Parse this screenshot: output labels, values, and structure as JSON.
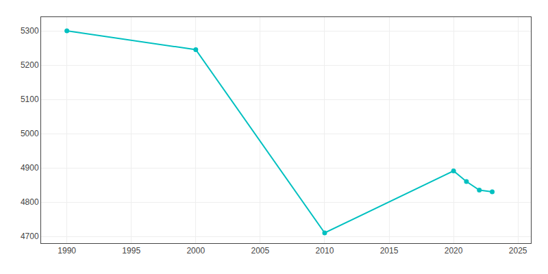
{
  "chart_data": {
    "type": "line",
    "x": [
      1990,
      2000,
      2010,
      2020,
      2021,
      2022,
      2023
    ],
    "values": [
      5300,
      5245,
      4710,
      4891,
      4860,
      4835,
      4830
    ],
    "color": "#00C0C0",
    "marker": "circle",
    "xlim": [
      1988,
      2026
    ],
    "ylim": [
      4680,
      5340
    ],
    "xticks": [
      1990,
      1995,
      2000,
      2005,
      2010,
      2015,
      2020,
      2025
    ],
    "yticks": [
      4700,
      4800,
      4900,
      5000,
      5100,
      5200,
      5300
    ],
    "grid": true
  }
}
